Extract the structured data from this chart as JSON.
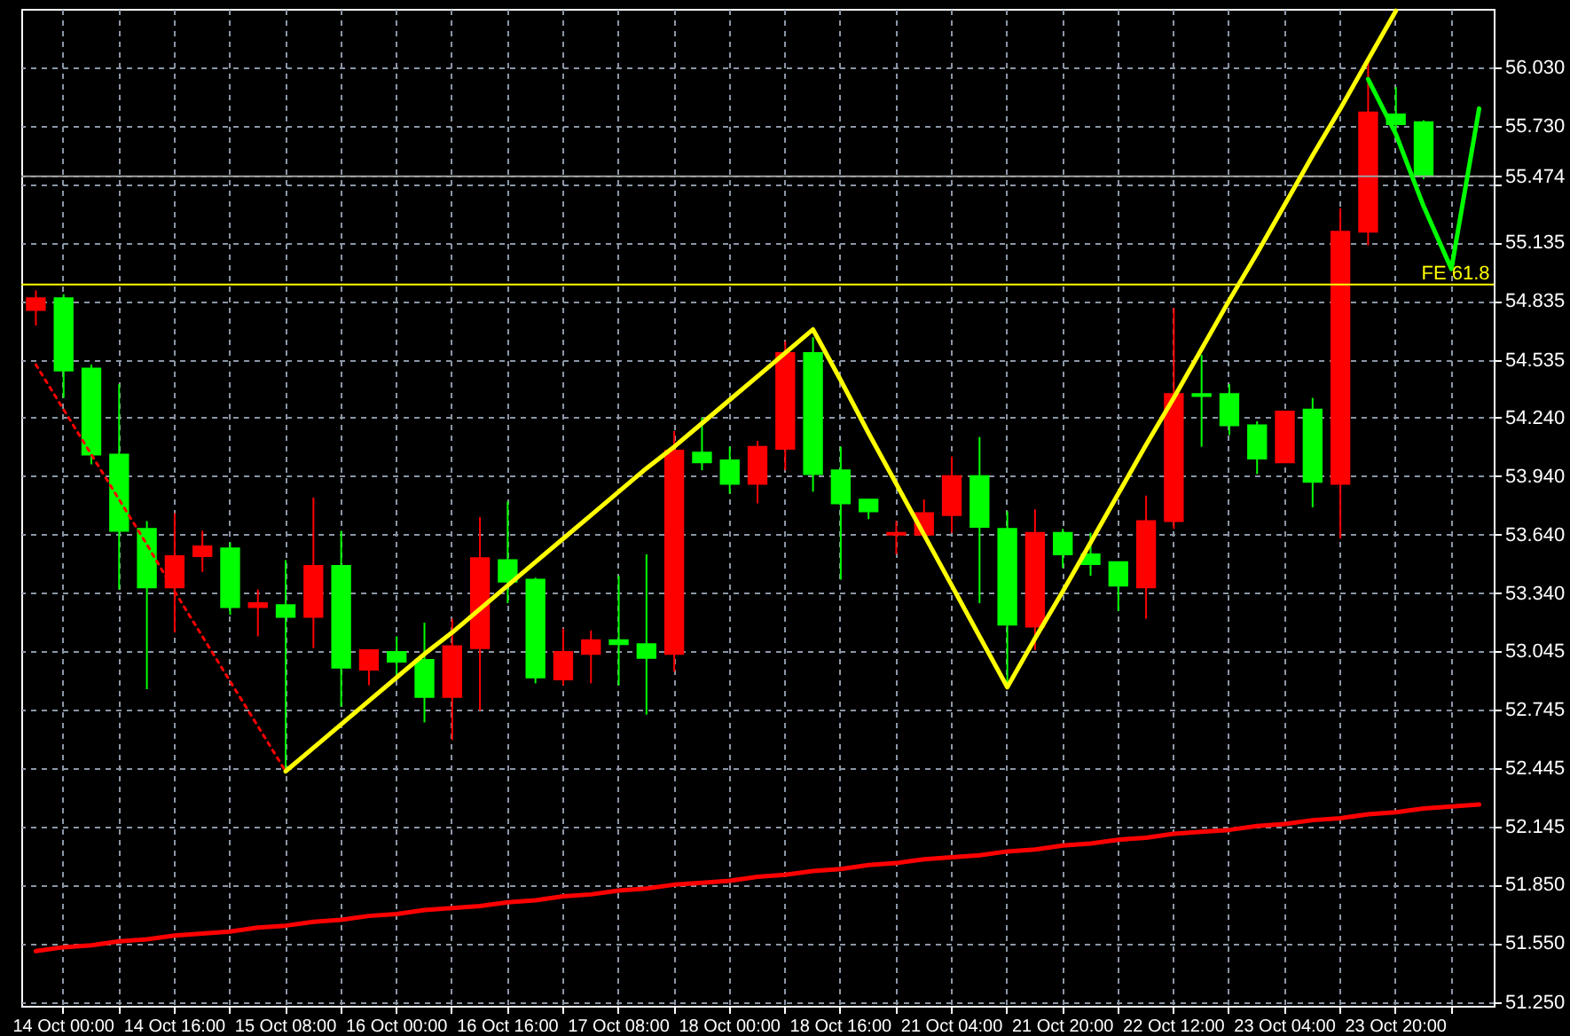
{
  "chart_data": {
    "type": "candlestick",
    "categories": [
      null,
      "14 Oct 00:00",
      null,
      null,
      null,
      "14 Oct 16:00",
      null,
      null,
      null,
      "15 Oct 08:00",
      null,
      null,
      null,
      "16 Oct 00:00",
      null,
      null,
      null,
      "16 Oct 16:00",
      null,
      null,
      null,
      "17 Oct 08:00",
      null,
      null,
      null,
      "18 Oct 00:00",
      null,
      null,
      null,
      "18 Oct 16:00",
      null,
      null,
      null,
      "21 Oct 04:00",
      null,
      null,
      null,
      "21 Oct 20:00",
      null,
      null,
      null,
      "22 Oct 12:00",
      null,
      null,
      null,
      "23 Oct 04:00",
      null,
      null,
      null,
      "23 Oct 20:00",
      null,
      null,
      null
    ],
    "ohlc": [
      [
        54.79,
        54.89,
        54.71,
        54.85
      ],
      [
        54.85,
        54.87,
        54.34,
        54.48
      ],
      [
        54.49,
        54.51,
        54.0,
        54.05
      ],
      [
        54.05,
        54.41,
        53.36,
        53.66
      ],
      [
        53.67,
        53.71,
        52.85,
        53.37
      ],
      [
        53.37,
        53.75,
        53.14,
        53.53
      ],
      [
        53.53,
        53.66,
        53.45,
        53.58
      ],
      [
        53.57,
        53.6,
        53.23,
        53.27
      ],
      [
        53.27,
        53.36,
        53.12,
        53.29
      ],
      [
        53.28,
        53.51,
        52.43,
        53.22
      ],
      [
        53.22,
        53.83,
        53.06,
        53.48
      ],
      [
        53.48,
        53.66,
        52.76,
        52.96
      ],
      [
        52.95,
        53.05,
        52.87,
        53.05
      ],
      [
        53.04,
        53.12,
        52.9,
        52.99
      ],
      [
        53.0,
        53.19,
        52.68,
        52.81
      ],
      [
        52.81,
        53.21,
        52.59,
        53.07
      ],
      [
        53.06,
        53.73,
        52.74,
        53.52
      ],
      [
        53.51,
        53.81,
        53.29,
        53.4
      ],
      [
        53.41,
        53.42,
        52.88,
        52.91
      ],
      [
        52.9,
        53.16,
        52.87,
        53.04
      ],
      [
        53.03,
        53.15,
        52.88,
        53.1
      ],
      [
        53.1,
        53.43,
        52.87,
        53.08
      ],
      [
        53.08,
        53.54,
        52.72,
        53.01
      ],
      [
        53.03,
        54.17,
        52.94,
        54.07
      ],
      [
        54.06,
        54.24,
        53.97,
        54.01
      ],
      [
        54.02,
        54.09,
        53.85,
        53.9
      ],
      [
        53.9,
        54.12,
        53.8,
        54.09
      ],
      [
        54.08,
        54.63,
        53.97,
        54.57
      ],
      [
        54.57,
        54.65,
        53.86,
        53.95
      ],
      [
        53.97,
        54.09,
        53.41,
        53.8
      ],
      [
        53.82,
        53.82,
        53.72,
        53.76
      ],
      [
        53.64,
        53.71,
        53.54,
        53.65
      ],
      [
        53.64,
        53.82,
        53.64,
        53.75
      ],
      [
        53.74,
        54.04,
        53.65,
        53.94
      ],
      [
        53.94,
        54.14,
        53.29,
        53.68
      ],
      [
        53.67,
        53.76,
        52.88,
        53.18
      ],
      [
        53.17,
        53.77,
        53.05,
        53.65
      ],
      [
        53.65,
        53.67,
        53.47,
        53.54
      ],
      [
        53.54,
        53.65,
        53.43,
        53.49
      ],
      [
        53.5,
        53.5,
        53.25,
        53.38
      ],
      [
        53.37,
        53.84,
        53.21,
        53.71
      ],
      [
        53.71,
        54.8,
        53.67,
        54.36
      ],
      [
        54.36,
        54.56,
        54.09,
        54.35
      ],
      [
        54.36,
        54.41,
        54.15,
        54.2
      ],
      [
        54.2,
        54.22,
        53.95,
        54.03
      ],
      [
        54.01,
        54.27,
        54.01,
        54.27
      ],
      [
        54.28,
        54.34,
        53.78,
        53.91
      ],
      [
        53.9,
        55.31,
        53.62,
        55.19
      ],
      [
        55.19,
        56.07,
        55.12,
        55.8
      ],
      [
        55.79,
        55.93,
        55.71,
        55.74
      ],
      [
        55.75,
        55.76,
        55.46,
        55.474
      ],
      null,
      null
    ],
    "colors": [
      "#ff0000",
      "#00ff00",
      "#00ff00",
      "#00ff00",
      "#00ff00",
      "#ff0000",
      "#ff0000",
      "#00ff00",
      "#ff0000",
      "#00ff00",
      "#ff0000",
      "#00ff00",
      "#ff0000",
      "#00ff00",
      "#00ff00",
      "#ff0000",
      "#ff0000",
      "#00ff00",
      "#00ff00",
      "#ff0000",
      "#ff0000",
      "#00ff00",
      "#00ff00",
      "#ff0000",
      "#00ff00",
      "#00ff00",
      "#ff0000",
      "#ff0000",
      "#00ff00",
      "#00ff00",
      "#00ff00",
      "#ff0000",
      "#ff0000",
      "#ff0000",
      "#00ff00",
      "#00ff00",
      "#ff0000",
      "#00ff00",
      "#00ff00",
      "#00ff00",
      "#ff0000",
      "#ff0000",
      "#00ff00",
      "#00ff00",
      "#00ff00",
      "#ff0000",
      "#00ff00",
      "#ff0000",
      "#ff0000",
      "#00ff00",
      "#00ff00",
      null,
      null
    ],
    "series": [
      {
        "type": "line",
        "color": "#ff0000",
        "values": [
          51.51,
          51.53,
          51.54,
          51.56,
          51.57,
          51.59,
          51.6,
          51.61,
          51.63,
          51.64,
          51.66,
          51.67,
          51.69,
          51.7,
          51.72,
          51.73,
          51.74,
          51.76,
          51.77,
          51.79,
          51.8,
          51.82,
          51.83,
          51.85,
          51.86,
          51.87,
          51.89,
          51.9,
          51.92,
          51.93,
          51.95,
          51.96,
          51.98,
          51.99,
          52.0,
          52.02,
          52.03,
          52.05,
          52.06,
          52.08,
          52.09,
          52.11,
          52.12,
          52.13,
          52.15,
          52.16,
          52.18,
          52.19,
          52.21,
          52.22,
          52.24,
          52.25,
          52.26
        ]
      },
      {
        "type": "line",
        "color": "#ff0000",
        "line_style": "dotted",
        "values": [
          54.51,
          54.28,
          54.05,
          53.82,
          53.59,
          53.35,
          53.12,
          52.89,
          52.66,
          52.43,
          null,
          null,
          null,
          null,
          null,
          null,
          null,
          null,
          null,
          null,
          null,
          null,
          null,
          null,
          null,
          null,
          null,
          null,
          null,
          null,
          null,
          null,
          null,
          null,
          null,
          null,
          null,
          null,
          null,
          null,
          null,
          null,
          null,
          null,
          null,
          null,
          null,
          null,
          null,
          null,
          null,
          null,
          null
        ]
      },
      {
        "type": "line",
        "color": "#ffff00",
        "values": [
          null,
          null,
          null,
          null,
          null,
          null,
          null,
          null,
          null,
          52.43,
          52.55,
          52.67,
          52.79,
          52.91,
          53.03,
          53.14,
          53.26,
          53.38,
          53.5,
          53.62,
          53.74,
          53.86,
          53.98,
          54.09,
          54.21,
          54.33,
          54.45,
          54.57,
          54.69,
          54.43,
          54.16,
          53.9,
          53.64,
          53.38,
          53.12,
          52.86,
          53.11,
          53.35,
          53.6,
          53.85,
          54.1,
          54.34,
          54.59,
          54.84,
          55.08,
          55.33,
          55.58,
          55.82,
          56.07,
          56.32,
          null,
          null,
          null
        ]
      },
      {
        "type": "line",
        "color": "#00ff00",
        "values": [
          null,
          null,
          null,
          null,
          null,
          null,
          null,
          null,
          null,
          null,
          null,
          null,
          null,
          null,
          null,
          null,
          null,
          null,
          null,
          null,
          null,
          null,
          null,
          null,
          null,
          null,
          null,
          null,
          null,
          null,
          null,
          null,
          null,
          null,
          null,
          null,
          null,
          null,
          null,
          null,
          null,
          null,
          null,
          null,
          null,
          null,
          null,
          null,
          55.97,
          55.69,
          55.32,
          55.0,
          55.82
        ]
      }
    ],
    "ylim": [
      51.23,
      56.33
    ],
    "yticks": [
      {
        "value": 51.25,
        "label": "51.250"
      },
      {
        "value": 51.55,
        "label": "51.550"
      },
      {
        "value": 51.85,
        "label": "51.850"
      },
      52.145,
      52.445,
      52.745,
      53.045,
      {
        "value": 53.34,
        "label": "53.340"
      },
      {
        "value": 53.64,
        "label": "53.640"
      },
      {
        "value": 53.94,
        "label": "53.940"
      },
      {
        "value": 54.24,
        "label": "54.240"
      },
      54.535,
      54.835,
      55.135,
      {
        "value": 55.435,
        "label": null
      },
      55.474,
      {
        "value": 55.73,
        "label": "55.730"
      },
      {
        "value": 56.03,
        "label": "56.030"
      }
    ],
    "grid": true,
    "ref_lines": [
      {
        "axis": "y",
        "value": 55.474,
        "color": "#a0a0a0"
      },
      {
        "axis": "y",
        "value": 54.92,
        "label": "FE 61.8",
        "color": "#ffff00"
      }
    ]
  }
}
